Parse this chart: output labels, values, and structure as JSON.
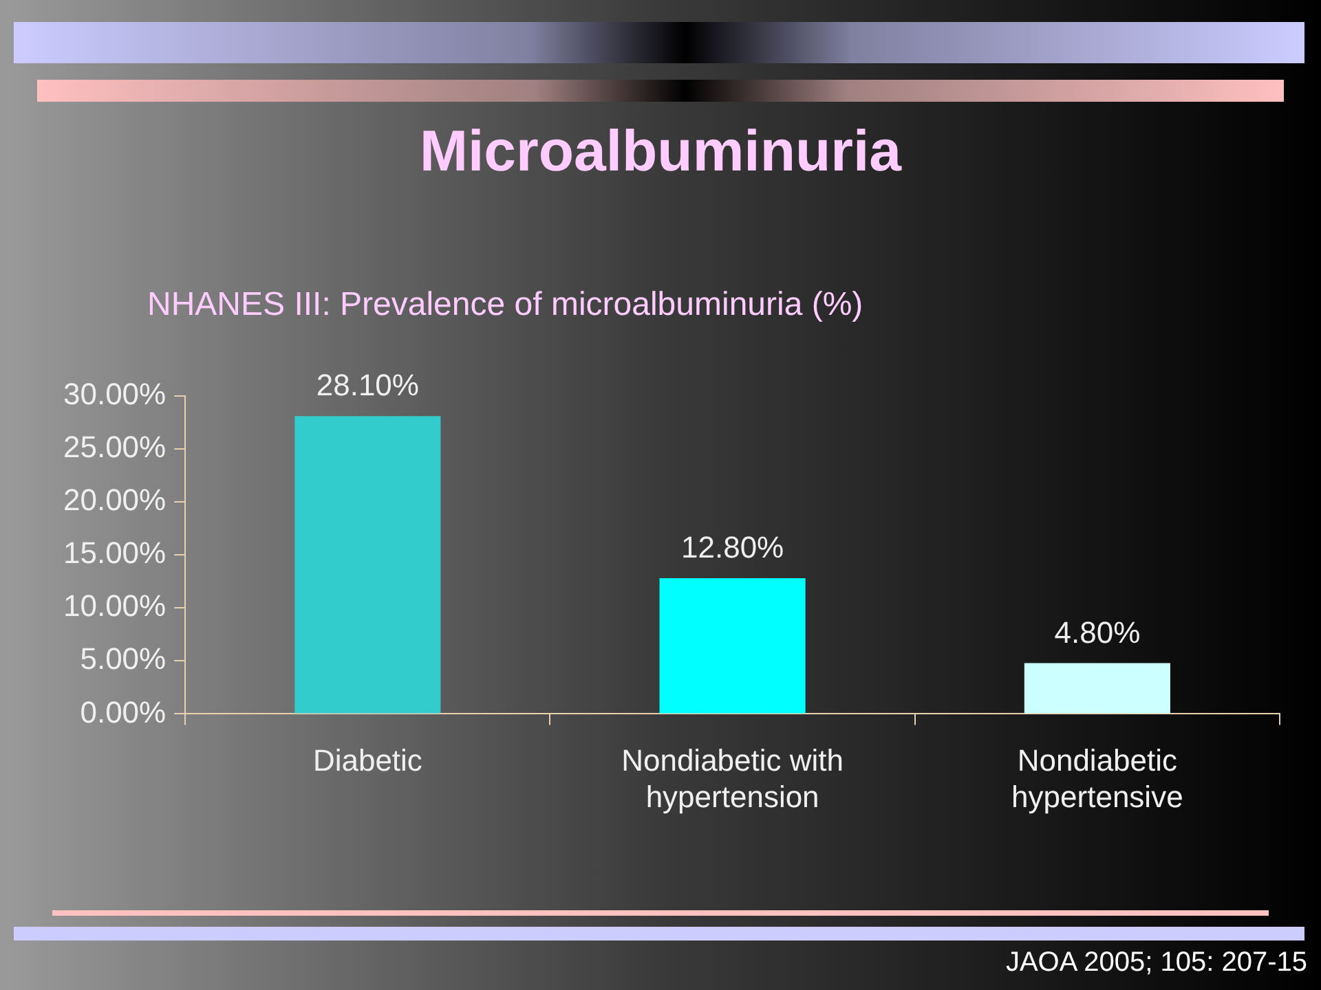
{
  "chart_data": {
    "type": "bar",
    "title": "Microalbuminuria",
    "subtitle": "NHANES III: Prevalence of microalbuminuria (%)",
    "categories": [
      "Diabetic",
      "Nondiabetic with hypertension",
      "Nondiabetic hypertensive"
    ],
    "values": [
      28.1,
      12.8,
      4.8
    ],
    "colors": [
      "#33cccc",
      "#00ffff",
      "#ccffff"
    ],
    "value_labels": [
      "28.10%",
      "12.80%",
      "4.80%"
    ],
    "ylim": [
      0,
      30
    ],
    "yticks": [
      {
        "value": 0,
        "label": "0.00%"
      },
      {
        "value": 5,
        "label": "5.00%"
      },
      {
        "value": 10,
        "label": "10.00%"
      },
      {
        "value": 15,
        "label": "15.00%"
      },
      {
        "value": 20,
        "label": "20.00%"
      },
      {
        "value": 25,
        "label": "25.00%"
      },
      {
        "value": 30,
        "label": "30.00%"
      }
    ],
    "grid": false,
    "legend": false,
    "annotations": [
      "JAOA 2005; 105: 207-15"
    ]
  }
}
